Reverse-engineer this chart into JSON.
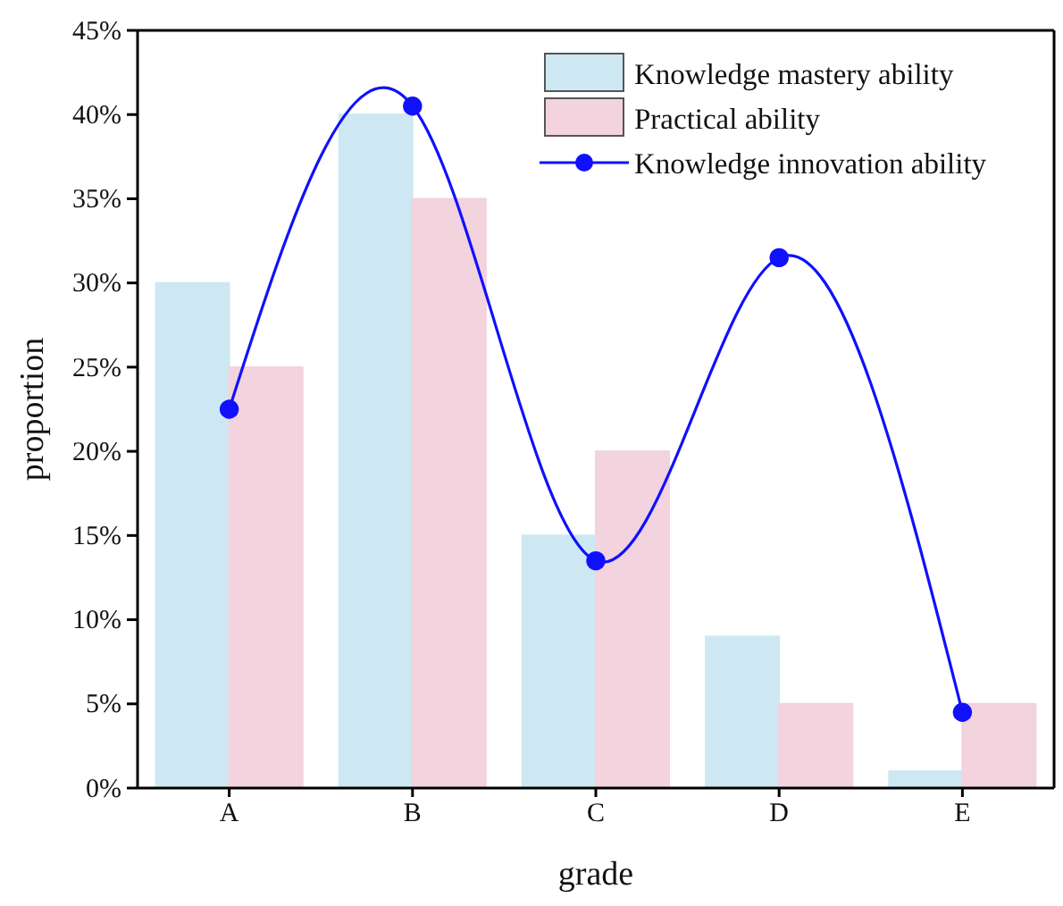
{
  "chart_data": {
    "type": "bar",
    "xlabel": "grade",
    "ylabel": "proportion",
    "categories": [
      "A",
      "B",
      "C",
      "D",
      "E"
    ],
    "series": [
      {
        "name": "Knowledge mastery ability",
        "color": "#cde8f2",
        "values": [
          30,
          40,
          15,
          9,
          1
        ]
      },
      {
        "name": "Practical ability",
        "color": "#f2d3de",
        "values": [
          25,
          35,
          20,
          5,
          5
        ]
      },
      {
        "name": "Knowledge innovation ability",
        "type": "line",
        "color": "#1010ff",
        "marker": "circle",
        "values": [
          22.5,
          40.5,
          13.5,
          31.5,
          4.5
        ]
      }
    ],
    "ylim": [
      0,
      45
    ],
    "yticks": [
      {
        "value": 0,
        "label": "0%"
      },
      {
        "value": 5,
        "label": "5%"
      },
      {
        "value": 10,
        "label": "10%"
      },
      {
        "value": 15,
        "label": "15%"
      },
      {
        "value": 20,
        "label": "20%"
      },
      {
        "value": 25,
        "label": "25%"
      },
      {
        "value": 30,
        "label": "30%"
      },
      {
        "value": 35,
        "label": "35%"
      },
      {
        "value": 40,
        "label": "40%"
      },
      {
        "value": 45,
        "label": "45%"
      }
    ],
    "grid": false,
    "legend": "top right"
  }
}
